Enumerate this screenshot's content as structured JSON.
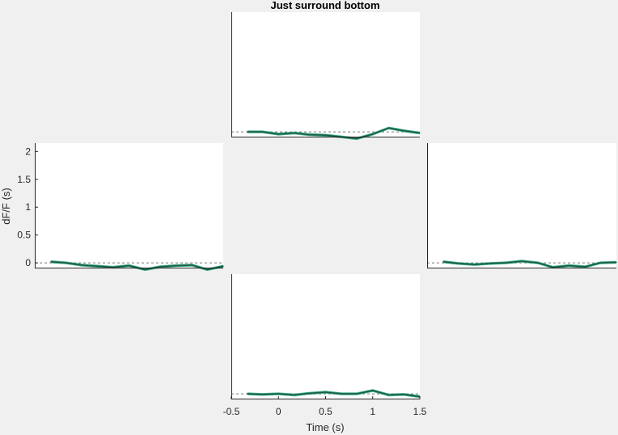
{
  "figure": {
    "title": "Just surround bottom",
    "background": "#f0f0f0",
    "axes_background": "#ffffff",
    "line_color": "#1a5c44",
    "band_color": "#20a079",
    "zero_line_color": "#777777"
  },
  "chart_data": [
    {
      "type": "line",
      "panel": "top",
      "xlim": [
        -0.5,
        1.5
      ],
      "ylim": [
        -0.1,
        2.15
      ],
      "grid": false,
      "zero_line": true,
      "x": [
        -0.33,
        -0.17,
        0.0,
        0.17,
        0.33,
        0.5,
        0.67,
        0.83,
        1.0,
        1.17,
        1.33,
        1.5
      ],
      "series": [
        {
          "values": [
            0.0,
            0.0,
            -0.04,
            -0.02,
            -0.05,
            -0.06,
            -0.09,
            -0.12,
            -0.04,
            0.07,
            0.02,
            -0.02
          ],
          "error": 0.025
        }
      ]
    },
    {
      "type": "line",
      "panel": "left",
      "xlim": [
        -0.5,
        1.5
      ],
      "ylim": [
        -0.1,
        2.15
      ],
      "yticks": [
        "0",
        "0.5",
        "1",
        "1.5",
        "2"
      ],
      "ylabel": "dF/F (s)",
      "grid": false,
      "zero_line": true,
      "x": [
        -0.33,
        -0.17,
        0.0,
        0.17,
        0.33,
        0.5,
        0.67,
        0.83,
        1.0,
        1.17,
        1.33,
        1.5
      ],
      "series": [
        {
          "values": [
            0.02,
            0.0,
            -0.04,
            -0.06,
            -0.08,
            -0.05,
            -0.12,
            -0.07,
            -0.05,
            -0.04,
            -0.12,
            -0.06
          ],
          "error": 0.025
        }
      ]
    },
    {
      "type": "line",
      "panel": "right",
      "xlim": [
        -0.5,
        1.5
      ],
      "ylim": [
        -0.1,
        2.15
      ],
      "grid": false,
      "zero_line": true,
      "x": [
        -0.33,
        -0.17,
        0.0,
        0.17,
        0.33,
        0.5,
        0.67,
        0.83,
        1.0,
        1.17,
        1.33,
        1.5
      ],
      "series": [
        {
          "values": [
            0.02,
            -0.01,
            -0.03,
            -0.01,
            0.0,
            0.03,
            0.0,
            -0.08,
            -0.05,
            -0.07,
            0.0,
            0.01
          ],
          "error": 0.025
        }
      ]
    },
    {
      "type": "line",
      "panel": "bottom",
      "xlim": [
        -0.5,
        1.5
      ],
      "ylim": [
        -0.1,
        2.15
      ],
      "xticks": [
        "-0.5",
        "0",
        "0.5",
        "1",
        "1.5"
      ],
      "xlabel": "Time (s)",
      "grid": false,
      "zero_line": true,
      "x": [
        -0.33,
        -0.17,
        0.0,
        0.17,
        0.33,
        0.5,
        0.67,
        0.83,
        1.0,
        1.17,
        1.33,
        1.5
      ],
      "series": [
        {
          "values": [
            0.0,
            -0.01,
            0.0,
            -0.02,
            0.01,
            0.03,
            0.0,
            0.0,
            0.06,
            -0.02,
            -0.01,
            -0.05
          ],
          "error": 0.025
        }
      ]
    }
  ]
}
